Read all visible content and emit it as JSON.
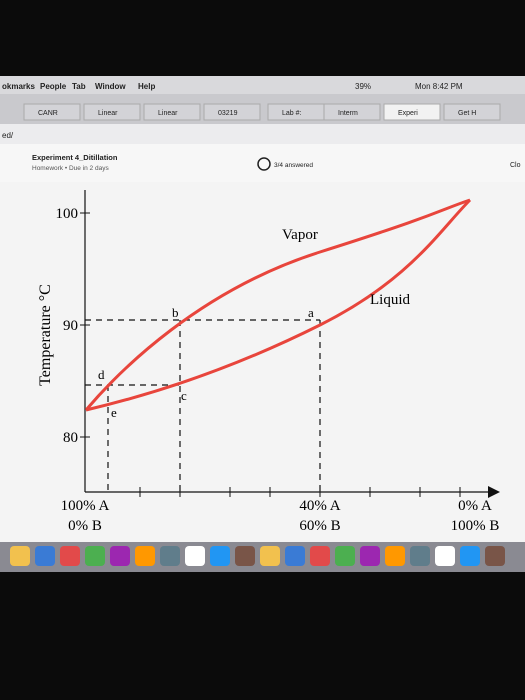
{
  "menubar": {
    "left": [
      "okmarks",
      "People",
      "Tab",
      "Window",
      "Help"
    ],
    "battery": "39%",
    "clock": "Mon 8:42 PM"
  },
  "tabs": [
    "CANR",
    "Linear",
    "Linear",
    "03219",
    "Lab #:",
    "Interm",
    "Experi",
    "Get H"
  ],
  "address": "ed/",
  "header": {
    "title": "Experiment 4_Ditillation",
    "subtitle": "Homework • Due in 2 days",
    "progress": "3/4 answered",
    "close": "Clo"
  },
  "diagram": {
    "y_axis_label": "Temperature °C",
    "y_ticks": [
      "100",
      "90",
      "80"
    ],
    "curve_labels": {
      "vapor": "Vapor",
      "liquid": "Liquid"
    },
    "points": [
      "a",
      "b",
      "c",
      "d",
      "e"
    ],
    "x_labels": [
      [
        "100% A",
        "0% B"
      ],
      [
        "40% A",
        "60% B"
      ],
      [
        "0% A",
        "100% B"
      ]
    ]
  }
}
